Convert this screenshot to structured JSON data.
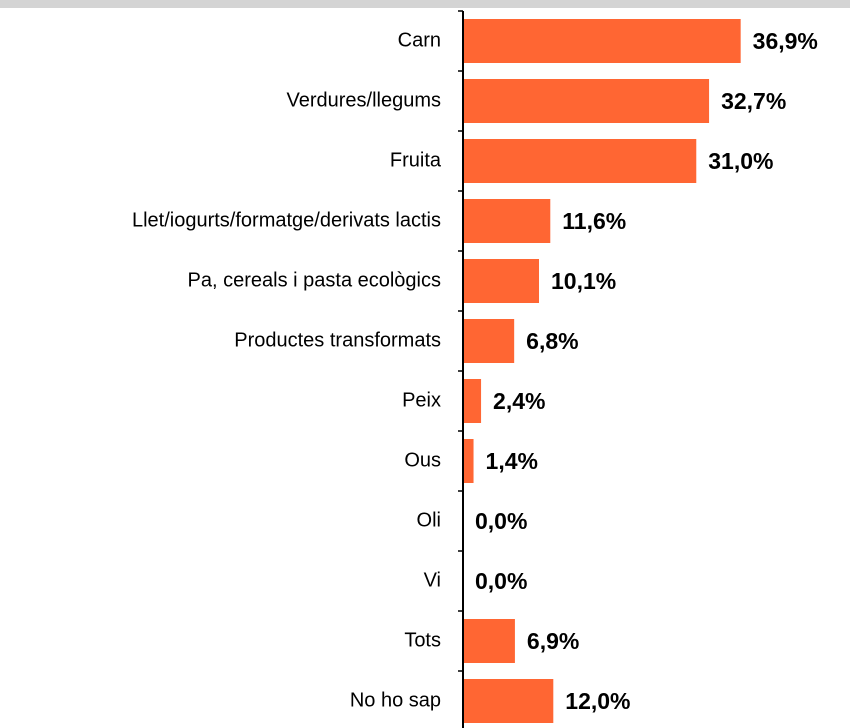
{
  "chart_data": {
    "type": "hbar",
    "categories": [
      "Carn",
      "Verdures/llegums",
      "Fruita",
      "Llet/iogurts/formatge/derivats lactis",
      "Pa, cereals i pasta ecològics",
      "Productes transformats",
      "Peix",
      "Ous",
      "Oli",
      "Vi",
      "Tots",
      "No ho sap"
    ],
    "values": [
      36.9,
      32.7,
      31.0,
      11.6,
      10.1,
      6.8,
      2.4,
      1.4,
      0.0,
      0.0,
      6.9,
      12.0
    ],
    "value_labels": [
      "36,9%",
      "32,7%",
      "31,0%",
      "11,6%",
      "10,1%",
      "6,8%",
      "2,4%",
      "1,4%",
      "0,0%",
      "0,0%",
      "6,9%",
      "12,0%"
    ],
    "color": "#ff6633",
    "xlim": [
      0,
      40
    ]
  }
}
